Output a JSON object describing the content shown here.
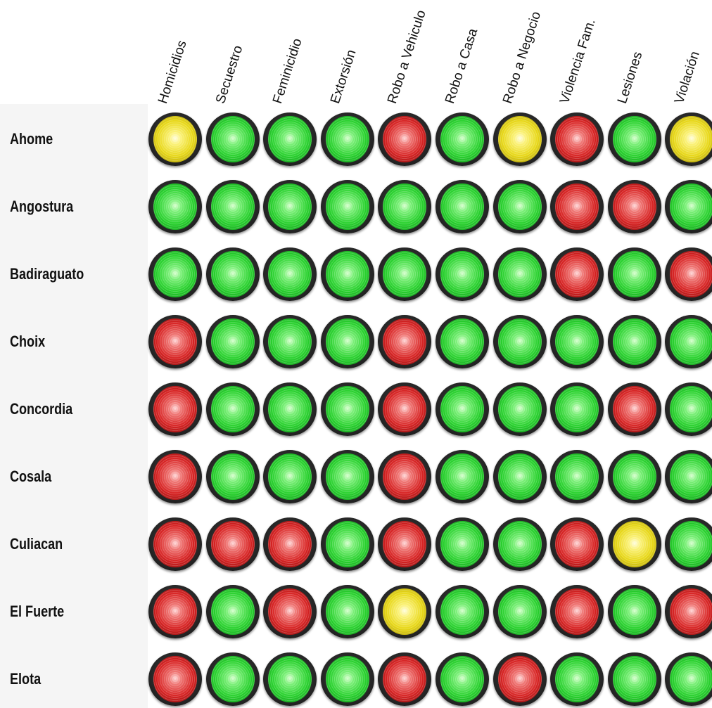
{
  "columns": [
    "Homicidios",
    "Secuestro",
    "Feminicidio",
    "Extorsión",
    "Robo a Vehiculo",
    "Robo a Casa",
    "Robo a Negocio",
    "Violencia Fam.",
    "Lesiones",
    "Violación"
  ],
  "colors": {
    "green": "#2ad12f",
    "red": "#d72424",
    "yellow": "#e7d718"
  },
  "chart_data": {
    "type": "heatmap",
    "x_categories": [
      "Homicidios",
      "Secuestro",
      "Feminicidio",
      "Extorsión",
      "Robo a Vehiculo",
      "Robo a Casa",
      "Robo a Negocio",
      "Violencia Fam.",
      "Lesiones",
      "Violación"
    ],
    "rows": [
      {
        "name": "Ahome",
        "values": [
          "yellow",
          "green",
          "green",
          "green",
          "red",
          "green",
          "yellow",
          "red",
          "green",
          "yellow"
        ]
      },
      {
        "name": "Angostura",
        "values": [
          "green",
          "green",
          "green",
          "green",
          "green",
          "green",
          "green",
          "red",
          "red",
          "green"
        ]
      },
      {
        "name": "Badiraguato",
        "values": [
          "green",
          "green",
          "green",
          "green",
          "green",
          "green",
          "green",
          "red",
          "green",
          "red"
        ]
      },
      {
        "name": "Choix",
        "values": [
          "red",
          "green",
          "green",
          "green",
          "red",
          "green",
          "green",
          "green",
          "green",
          "green"
        ]
      },
      {
        "name": "Concordia",
        "values": [
          "red",
          "green",
          "green",
          "green",
          "red",
          "green",
          "green",
          "green",
          "red",
          "green"
        ]
      },
      {
        "name": "Cosala",
        "values": [
          "red",
          "green",
          "green",
          "green",
          "red",
          "green",
          "green",
          "green",
          "green",
          "green"
        ]
      },
      {
        "name": "Culiacan",
        "values": [
          "red",
          "red",
          "red",
          "green",
          "red",
          "green",
          "green",
          "red",
          "yellow",
          "green"
        ]
      },
      {
        "name": "El Fuerte",
        "values": [
          "red",
          "green",
          "red",
          "green",
          "yellow",
          "green",
          "green",
          "red",
          "green",
          "red"
        ]
      },
      {
        "name": "Elota",
        "values": [
          "red",
          "green",
          "green",
          "green",
          "red",
          "green",
          "red",
          "green",
          "green",
          "green"
        ]
      }
    ]
  }
}
